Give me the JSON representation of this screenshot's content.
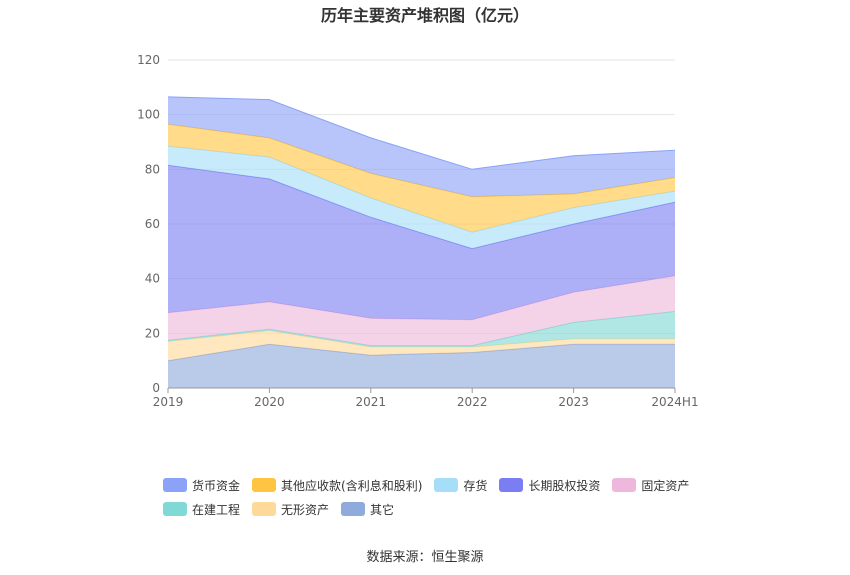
{
  "chart_data": {
    "type": "area",
    "stacked": true,
    "title": "历年主要资产堆积图（亿元）",
    "x": [
      "2019",
      "2020",
      "2021",
      "2022",
      "2023",
      "2024H1"
    ],
    "ylim": [
      0,
      120
    ],
    "yticks": [
      0,
      20,
      40,
      60,
      80,
      100,
      120
    ],
    "grid": true,
    "legend_position": "bottom",
    "series": [
      {
        "name": "其它",
        "color": "#8faadc",
        "values": [
          10,
          16,
          12,
          13,
          16,
          16
        ]
      },
      {
        "name": "无形资产",
        "color": "#ffd99a",
        "values": [
          7,
          5,
          3,
          2,
          2,
          2
        ]
      },
      {
        "name": "在建工程",
        "color": "#80d9d4",
        "values": [
          0.5,
          0.5,
          0.5,
          0.5,
          6,
          10
        ]
      },
      {
        "name": "固定资产",
        "color": "#edb8dc",
        "values": [
          10,
          10,
          10,
          9.5,
          11,
          13
        ]
      },
      {
        "name": "长期股权投资",
        "color": "#7a7ef2",
        "values": [
          54,
          45,
          37,
          26,
          25,
          27
        ]
      },
      {
        "name": "存货",
        "color": "#a6defa",
        "values": [
          7,
          8,
          7,
          6,
          6,
          4
        ]
      },
      {
        "name": "其他应收款(含利息和股利)",
        "color": "#ffc542",
        "values": [
          8,
          7,
          9,
          13,
          5,
          5
        ]
      },
      {
        "name": "货币资金",
        "color": "#8aa2f7",
        "values": [
          10,
          14,
          13,
          10,
          14,
          10
        ]
      }
    ]
  },
  "legend": {
    "rows": [
      [
        {
          "name": "货币资金",
          "color": "#8aa2f7"
        },
        {
          "name": "其他应收款(含利息和股利)",
          "color": "#ffc542"
        },
        {
          "name": "存货",
          "color": "#a6defa"
        },
        {
          "name": "长期股权投资",
          "color": "#7a7ef2"
        },
        {
          "name": "固定资产",
          "color": "#edb8dc"
        }
      ],
      [
        {
          "name": "在建工程",
          "color": "#80d9d4"
        },
        {
          "name": "无形资产",
          "color": "#ffd99a"
        },
        {
          "name": "其它",
          "color": "#8faadc"
        }
      ]
    ]
  },
  "footer": {
    "source": "数据来源：恒生聚源"
  }
}
